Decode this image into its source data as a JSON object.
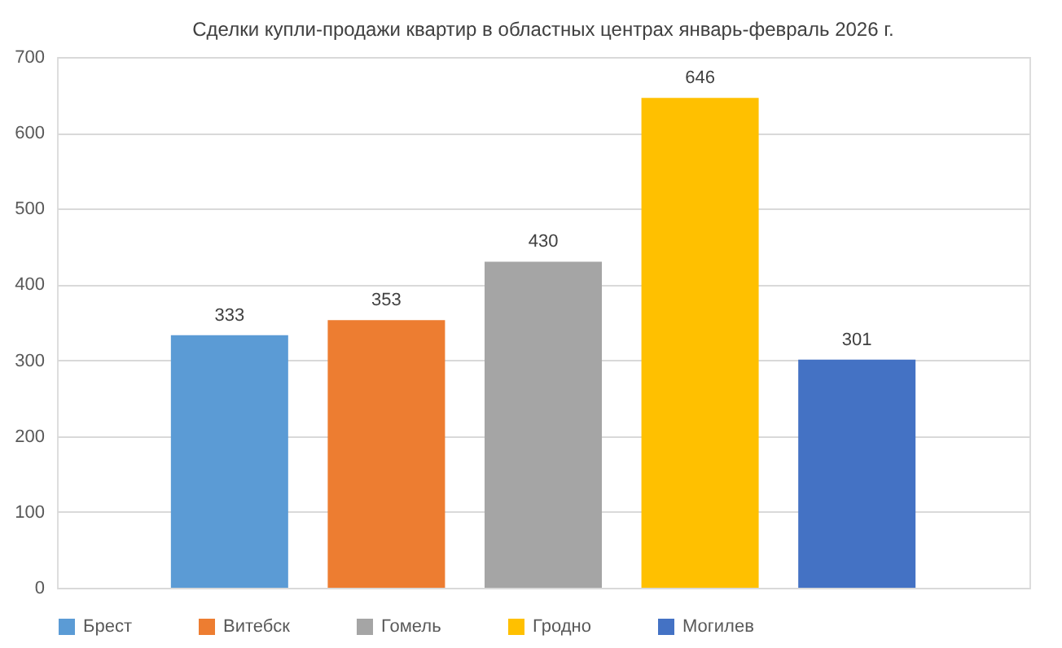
{
  "chart_data": {
    "type": "bar",
    "title": "Сделки купли-продажи квартир в областных центрах январь-февраль 2026 г.",
    "categories": [
      null,
      null,
      null,
      null,
      null
    ],
    "series": [
      {
        "name": "Брест",
        "color": "#5b9bd5",
        "values": [
          333,
          null,
          null,
          null,
          null
        ]
      },
      {
        "name": "Витебск",
        "color": "#ed7d31",
        "values": [
          null,
          353,
          null,
          null,
          null
        ]
      },
      {
        "name": "Гомель",
        "color": "#a5a5a5",
        "values": [
          null,
          null,
          430,
          null,
          null
        ]
      },
      {
        "name": "Гродно",
        "color": "#ffc000",
        "values": [
          null,
          null,
          null,
          646,
          null
        ]
      },
      {
        "name": "Могилев",
        "color": "#4472c4",
        "values": [
          null,
          null,
          null,
          null,
          301
        ]
      }
    ],
    "ylim": [
      0,
      700
    ],
    "yticks": [
      0,
      100,
      200,
      300,
      400,
      500,
      600,
      700
    ],
    "grid": "y",
    "legend": "bottom",
    "data_labels": true,
    "tick_labels": "y"
  }
}
